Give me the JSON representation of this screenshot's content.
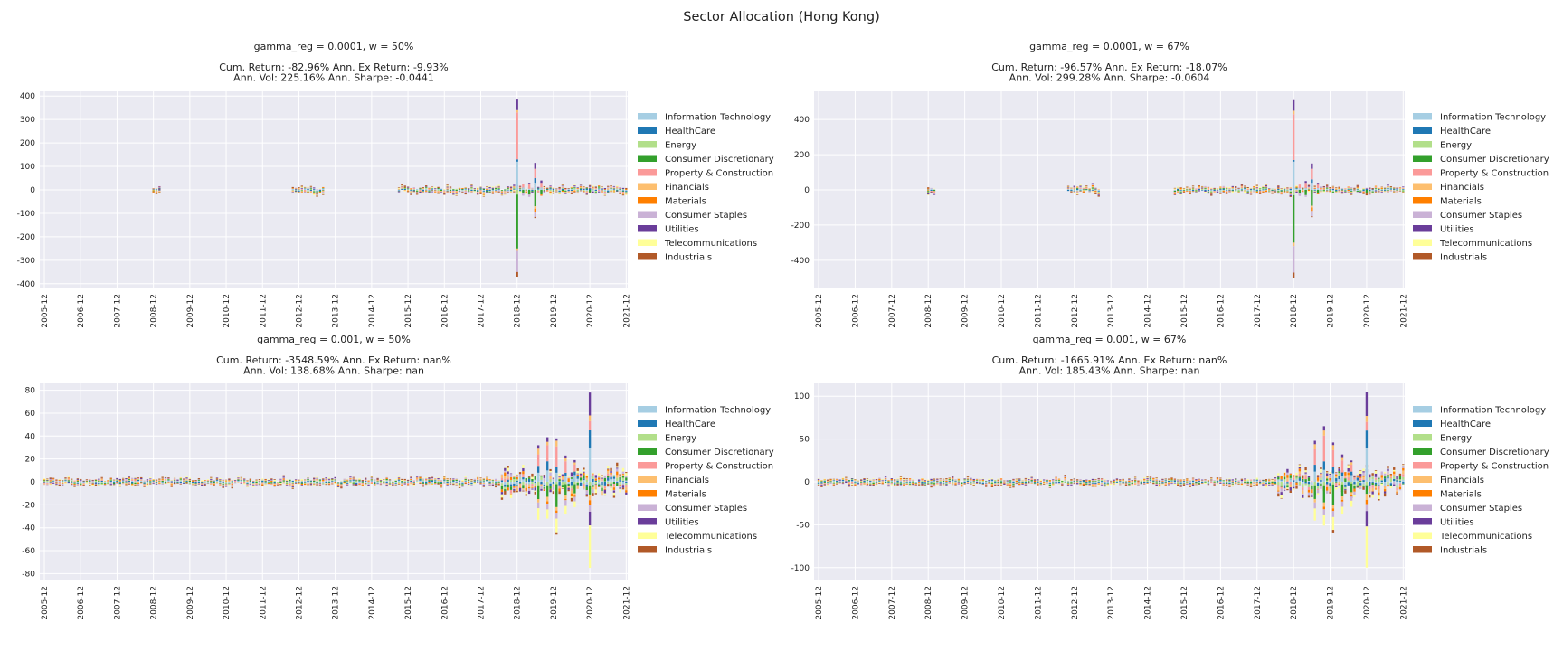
{
  "suptitle": "Sector Allocation (Hong Kong)",
  "sectors": [
    {
      "name": "Information Technology",
      "color": "#a6cee3"
    },
    {
      "name": "HealthCare",
      "color": "#1f78b4"
    },
    {
      "name": "Energy",
      "color": "#b2df8a"
    },
    {
      "name": "Consumer Discretionary",
      "color": "#33a02c"
    },
    {
      "name": "Property & Construction",
      "color": "#fb9a99"
    },
    {
      "name": "Financials",
      "color": "#fdbf6f"
    },
    {
      "name": "Materials",
      "color": "#ff7f00"
    },
    {
      "name": "Consumer Staples",
      "color": "#cab2d6"
    },
    {
      "name": "Utilities",
      "color": "#6a3d9a"
    },
    {
      "name": "Telecommunications",
      "color": "#ffff99"
    },
    {
      "name": "Industrials",
      "color": "#b15928"
    }
  ],
  "chart_data": [
    {
      "type": "bar",
      "stacked": true,
      "title_lines": [
        "gamma_reg = 0.0001, w = 50%",
        "",
        "Cum. Return: -82.96% Ann. Ex Return: -9.93%",
        "Ann. Vol: 225.16% Ann. Sharpe: -0.0441"
      ],
      "x_ticks": [
        "2005-12",
        "2006-12",
        "2007-12",
        "2008-12",
        "2009-12",
        "2010-12",
        "2011-12",
        "2012-12",
        "2013-12",
        "2014-12",
        "2015-12",
        "2016-12",
        "2017-12",
        "2018-12",
        "2019-12",
        "2020-12",
        "2021-12"
      ],
      "ylim": [
        -420,
        420
      ],
      "y_ticks": [
        400,
        300,
        200,
        100,
        0,
        -100,
        -200,
        -300,
        -400
      ],
      "grid": true,
      "legend": "right",
      "approx_bars": [
        {
          "month": "2008-12",
          "pos": [
            0,
            2,
            0,
            0,
            0,
            3,
            0,
            0,
            0,
            0,
            2
          ],
          "neg": [
            0,
            0,
            -2,
            0,
            0,
            0,
            -3,
            0,
            0,
            0,
            0
          ]
        },
        {
          "month": "2009-02",
          "pos": [
            0,
            0,
            0,
            0,
            0,
            0,
            0,
            0,
            3,
            0,
            2
          ],
          "neg": [
            0,
            -2,
            0,
            0,
            -3,
            0,
            0,
            0,
            0,
            0,
            0
          ]
        },
        {
          "month": "2018-12",
          "pos": [
            120,
            10,
            0,
            0,
            200,
            10,
            0,
            0,
            45,
            0,
            0
          ],
          "neg": [
            0,
            0,
            -20,
            -230,
            0,
            -10,
            0,
            -90,
            0,
            0,
            -20
          ]
        },
        {
          "month": "2019-02",
          "pos": [
            10,
            0,
            0,
            0,
            15,
            0,
            0,
            0,
            0,
            0,
            0
          ],
          "neg": [
            0,
            0,
            0,
            -15,
            0,
            0,
            0,
            -10,
            0,
            0,
            0
          ]
        },
        {
          "month": "2019-04",
          "pos": [
            5,
            0,
            0,
            0,
            20,
            0,
            0,
            0,
            5,
            0,
            0
          ],
          "neg": [
            0,
            0,
            0,
            -20,
            0,
            0,
            0,
            -10,
            0,
            0,
            0
          ]
        },
        {
          "month": "2019-06",
          "pos": [
            30,
            20,
            0,
            0,
            40,
            0,
            0,
            0,
            25,
            0,
            0
          ],
          "neg": [
            0,
            0,
            0,
            -70,
            0,
            -10,
            -15,
            -20,
            0,
            0,
            -5
          ]
        },
        {
          "month": "2019-08",
          "pos": [
            10,
            0,
            0,
            0,
            20,
            0,
            0,
            0,
            10,
            0,
            0
          ],
          "neg": [
            0,
            0,
            0,
            -20,
            0,
            0,
            -5,
            0,
            0,
            0,
            0
          ]
        },
        {
          "month": "2020-12",
          "pos": [
            0,
            5,
            0,
            0,
            0,
            0,
            0,
            0,
            2,
            0,
            0
          ],
          "neg": [
            0,
            0,
            0,
            -10,
            0,
            0,
            0,
            0,
            0,
            0,
            -5
          ]
        }
      ]
    },
    {
      "type": "bar",
      "stacked": true,
      "title_lines": [
        "gamma_reg = 0.0001, w = 67%",
        "",
        "Cum. Return: -96.57% Ann. Ex Return: -18.07%",
        "Ann. Vol: 299.28% Ann. Sharpe: -0.0604"
      ],
      "x_ticks": [
        "2005-12",
        "2006-12",
        "2007-12",
        "2008-12",
        "2009-12",
        "2010-12",
        "2011-12",
        "2012-12",
        "2013-12",
        "2014-12",
        "2015-12",
        "2016-12",
        "2017-12",
        "2018-12",
        "2019-12",
        "2020-12",
        "2021-12"
      ],
      "ylim": [
        -560,
        560
      ],
      "y_ticks": [
        400,
        200,
        0,
        -200,
        -400
      ],
      "grid": true,
      "legend": "right",
      "approx_bars": [
        {
          "month": "2008-12",
          "pos": [
            0,
            2,
            0,
            0,
            0,
            3,
            0,
            0,
            0,
            0,
            2
          ],
          "neg": [
            0,
            0,
            -2,
            0,
            0,
            0,
            -3,
            0,
            0,
            0,
            0
          ]
        },
        {
          "month": "2018-12",
          "pos": [
            160,
            10,
            0,
            0,
            260,
            20,
            0,
            0,
            60,
            0,
            0
          ],
          "neg": [
            0,
            0,
            -30,
            -270,
            0,
            -20,
            0,
            -150,
            0,
            0,
            -30
          ]
        },
        {
          "month": "2019-02",
          "pos": [
            10,
            0,
            0,
            0,
            20,
            0,
            0,
            0,
            0,
            0,
            0
          ],
          "neg": [
            0,
            0,
            0,
            -20,
            0,
            0,
            0,
            -15,
            0,
            0,
            0
          ]
        },
        {
          "month": "2019-04",
          "pos": [
            10,
            0,
            0,
            0,
            30,
            0,
            0,
            0,
            10,
            0,
            0
          ],
          "neg": [
            0,
            0,
            0,
            -30,
            0,
            0,
            0,
            -10,
            0,
            0,
            0
          ]
        },
        {
          "month": "2019-06",
          "pos": [
            40,
            20,
            0,
            0,
            60,
            0,
            0,
            0,
            30,
            0,
            0
          ],
          "neg": [
            0,
            0,
            0,
            -90,
            0,
            -10,
            -20,
            -30,
            0,
            0,
            -5
          ]
        },
        {
          "month": "2019-08",
          "pos": [
            10,
            0,
            0,
            0,
            20,
            0,
            0,
            0,
            10,
            0,
            0
          ],
          "neg": [
            0,
            0,
            0,
            -20,
            0,
            0,
            -5,
            0,
            0,
            0,
            0
          ]
        },
        {
          "month": "2020-12",
          "pos": [
            0,
            5,
            0,
            0,
            0,
            0,
            0,
            0,
            2,
            0,
            0
          ],
          "neg": [
            0,
            0,
            0,
            -15,
            0,
            0,
            0,
            0,
            0,
            0,
            -10
          ]
        }
      ]
    },
    {
      "type": "bar",
      "stacked": true,
      "title_lines": [
        "gamma_reg = 0.001, w = 50%",
        "",
        "Cum. Return: -3548.59% Ann. Ex Return: nan%",
        "Ann. Vol: 138.68% Ann. Sharpe: nan"
      ],
      "x_ticks": [
        "2005-12",
        "2006-12",
        "2007-12",
        "2008-12",
        "2009-12",
        "2010-12",
        "2011-12",
        "2012-12",
        "2013-12",
        "2014-12",
        "2015-12",
        "2016-12",
        "2017-12",
        "2018-12",
        "2019-12",
        "2020-12",
        "2021-12"
      ],
      "ylim": [
        -86,
        86
      ],
      "y_ticks": [
        80,
        60,
        40,
        20,
        0,
        -20,
        -40,
        -60,
        -80
      ],
      "grid": true,
      "legend": "right",
      "approx_bars": [
        {
          "month": "2019-07",
          "pos": [
            8,
            6,
            0,
            0,
            10,
            5,
            0,
            0,
            3,
            0,
            0
          ],
          "neg": [
            0,
            0,
            -3,
            -12,
            0,
            -3,
            0,
            -5,
            0,
            -10,
            0
          ]
        },
        {
          "month": "2019-10",
          "pos": [
            10,
            8,
            0,
            0,
            14,
            3,
            0,
            0,
            4,
            0,
            0
          ],
          "neg": [
            0,
            0,
            -3,
            -10,
            0,
            -4,
            -2,
            -5,
            0,
            -8,
            0
          ]
        },
        {
          "month": "2020-01",
          "pos": [
            8,
            5,
            0,
            0,
            18,
            5,
            0,
            0,
            2,
            0,
            0
          ],
          "neg": [
            0,
            0,
            -2,
            -20,
            0,
            -3,
            -2,
            -5,
            0,
            -12,
            -2
          ]
        },
        {
          "month": "2020-04",
          "pos": [
            5,
            3,
            0,
            0,
            10,
            3,
            0,
            0,
            2,
            0,
            0
          ],
          "neg": [
            0,
            0,
            -2,
            -10,
            0,
            -3,
            -1,
            -5,
            0,
            -7,
            0
          ]
        },
        {
          "month": "2020-07",
          "pos": [
            6,
            3,
            0,
            0,
            6,
            2,
            0,
            0,
            2,
            0,
            0
          ],
          "neg": [
            0,
            0,
            -2,
            -8,
            0,
            -2,
            -1,
            -4,
            0,
            -5,
            0
          ]
        },
        {
          "month": "2020-12",
          "pos": [
            30,
            15,
            0,
            0,
            8,
            5,
            0,
            0,
            20,
            0,
            0
          ],
          "neg": [
            0,
            0,
            -3,
            -8,
            0,
            -5,
            -4,
            -6,
            -12,
            -37,
            0
          ]
        }
      ]
    },
    {
      "type": "bar",
      "stacked": true,
      "title_lines": [
        "gamma_reg = 0.001, w = 67%",
        "",
        "Cum. Return: -1665.91% Ann. Ex Return: nan%",
        "Ann. Vol: 185.43% Ann. Sharpe: nan"
      ],
      "x_ticks": [
        "2005-12",
        "2006-12",
        "2007-12",
        "2008-12",
        "2009-12",
        "2010-12",
        "2011-12",
        "2012-12",
        "2013-12",
        "2014-12",
        "2015-12",
        "2016-12",
        "2017-12",
        "2018-12",
        "2019-12",
        "2020-12",
        "2021-12"
      ],
      "ylim": [
        -115,
        115
      ],
      "y_ticks": [
        100,
        50,
        0,
        -50,
        -100
      ],
      "grid": true,
      "legend": "right",
      "approx_bars": [
        {
          "month": "2019-07",
          "pos": [
            12,
            8,
            0,
            0,
            18,
            6,
            0,
            0,
            4,
            0,
            0
          ],
          "neg": [
            0,
            0,
            -4,
            -16,
            0,
            -4,
            0,
            -7,
            0,
            -14,
            0
          ]
        },
        {
          "month": "2019-10",
          "pos": [
            14,
            10,
            0,
            0,
            30,
            6,
            0,
            0,
            5,
            0,
            0
          ],
          "neg": [
            0,
            0,
            -4,
            -20,
            0,
            -5,
            -3,
            -7,
            0,
            -12,
            0
          ]
        },
        {
          "month": "2020-01",
          "pos": [
            10,
            7,
            0,
            0,
            20,
            6,
            0,
            0,
            3,
            0,
            0
          ],
          "neg": [
            0,
            0,
            -3,
            -24,
            0,
            -4,
            -3,
            -7,
            0,
            -15,
            -3
          ]
        },
        {
          "month": "2020-04",
          "pos": [
            7,
            4,
            0,
            0,
            14,
            4,
            0,
            0,
            3,
            0,
            0
          ],
          "neg": [
            0,
            0,
            -3,
            -14,
            0,
            -4,
            -2,
            -6,
            0,
            -9,
            0
          ]
        },
        {
          "month": "2020-07",
          "pos": [
            8,
            4,
            0,
            0,
            8,
            3,
            0,
            0,
            2,
            0,
            0
          ],
          "neg": [
            0,
            0,
            -2,
            -10,
            0,
            -3,
            -2,
            -5,
            0,
            -7,
            0
          ]
        },
        {
          "month": "2020-12",
          "pos": [
            40,
            20,
            0,
            0,
            10,
            7,
            0,
            0,
            28,
            0,
            0
          ],
          "neg": [
            0,
            0,
            -4,
            -10,
            0,
            -7,
            -5,
            -8,
            -18,
            -48,
            0
          ]
        }
      ]
    }
  ]
}
